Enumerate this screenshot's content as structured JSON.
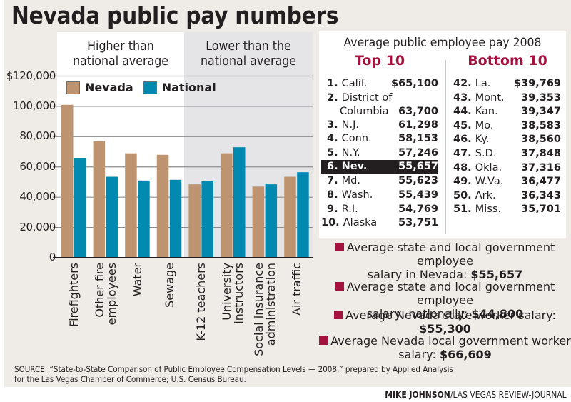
{
  "title": "Nevada public pay numbers",
  "colors": {
    "nevada": "#bd9370",
    "national": "#0189b0",
    "accent": "#a4123f",
    "background": "#efece7"
  },
  "chart_data": {
    "type": "bar",
    "title": "Nevada public pay numbers",
    "xlabel": "",
    "ylabel": "",
    "ylim": [
      0,
      120000
    ],
    "y_ticks": [
      0,
      20000,
      40000,
      60000,
      80000,
      100000,
      120000
    ],
    "y_tick_labels": [
      "0",
      "20,000",
      "40,000",
      "60,000",
      "80,000",
      "100,000",
      "$120,000"
    ],
    "grid": true,
    "legend": {
      "placement": "top-left",
      "entries": [
        "Nevada",
        "National"
      ]
    },
    "groups": [
      {
        "label": "Higher than national average",
        "categories": [
          "Firefighters",
          "Other fire employees",
          "Water",
          "Sewage"
        ]
      },
      {
        "label": "Lower than the national average",
        "categories": [
          "K-12 teachers",
          "University instructors",
          "Social insurance administration",
          "Air traffic"
        ]
      }
    ],
    "categories": [
      "Firefighters",
      "Other fire employees",
      "Water",
      "Sewage",
      "K-12 teachers",
      "University instructors",
      "Social insurance administration",
      "Air traffic"
    ],
    "category_lines": [
      [
        "Firefighters"
      ],
      [
        "Other fire",
        "employees"
      ],
      [
        "Water"
      ],
      [
        "Sewage"
      ],
      [
        "K-12 teachers"
      ],
      [
        "University",
        "instructors"
      ],
      [
        "Social insurance",
        "administration"
      ],
      [
        "Air traffic"
      ]
    ],
    "series": [
      {
        "name": "Nevada",
        "values": [
          101000,
          77000,
          69000,
          68000,
          48500,
          69000,
          47000,
          53500
        ]
      },
      {
        "name": "National",
        "values": [
          66000,
          53500,
          51000,
          51500,
          50500,
          73000,
          48500,
          56500
        ]
      }
    ]
  },
  "table": {
    "title": "Average public employee pay 2008",
    "top_heading": "Top 10",
    "bottom_heading": "Bottom 10",
    "top": [
      {
        "rank": "1.",
        "state": "Calif.",
        "pay": "$65,100"
      },
      {
        "rank": "2.",
        "state": "District of",
        "state2": "Columbia",
        "pay": "63,700"
      },
      {
        "rank": "3.",
        "state": "N.J.",
        "pay": "61,298"
      },
      {
        "rank": "4.",
        "state": "Conn.",
        "pay": "58,153"
      },
      {
        "rank": "5.",
        "state": "N.Y.",
        "pay": "57,246"
      },
      {
        "rank": "6.",
        "state": "Nev.",
        "pay": "55,657",
        "highlight": true
      },
      {
        "rank": "7.",
        "state": "Md.",
        "pay": "55,623"
      },
      {
        "rank": "8.",
        "state": "Wash.",
        "pay": "55,439"
      },
      {
        "rank": "9.",
        "state": "R.I.",
        "pay": "54,769"
      },
      {
        "rank": "10.",
        "state": "Alaska",
        "pay": "53,751"
      }
    ],
    "bottom": [
      {
        "rank": "42.",
        "state": "La.",
        "pay": "$39,769"
      },
      {
        "rank": "43.",
        "state": "Mont.",
        "pay": "39,353"
      },
      {
        "rank": "44.",
        "state": "Kan.",
        "pay": "39,347"
      },
      {
        "rank": "45.",
        "state": "Mo.",
        "pay": "38,583"
      },
      {
        "rank": "46.",
        "state": "Ky.",
        "pay": "38,560"
      },
      {
        "rank": "47.",
        "state": "S.D.",
        "pay": "37,848"
      },
      {
        "rank": "48.",
        "state": "Okla.",
        "pay": "37,316"
      },
      {
        "rank": "49.",
        "state": "W.Va.",
        "pay": "36,477"
      },
      {
        "rank": "50.",
        "state": "Ark.",
        "pay": "36,343"
      },
      {
        "rank": "51.",
        "state": "Miss.",
        "pay": "35,701"
      }
    ]
  },
  "facts": [
    {
      "line1": "Average state and local government employee",
      "line2": "salary in Nevada: ",
      "value": "$55,657"
    },
    {
      "line1": "Average state and local government employee",
      "line2": "salary, nationally: ",
      "value": "$44,800"
    },
    {
      "line1": "Average Nevada state worker salary: ",
      "line2": "",
      "value": "$55,300"
    },
    {
      "line1": "Average Nevada local government worker",
      "line2": "salary: ",
      "value": "$66,609"
    }
  ],
  "source": "SOURCE: “State-to-State Comparison of Public Employee Compensation Levels — 2008,” prepared by Applied Analysis for the Las Vegas Chamber of Commerce; U.S. Census Bureau.",
  "credit": {
    "name": "MIKE JOHNSON",
    "outlet": "/LAS VEGAS REVIEW-JOURNAL"
  }
}
